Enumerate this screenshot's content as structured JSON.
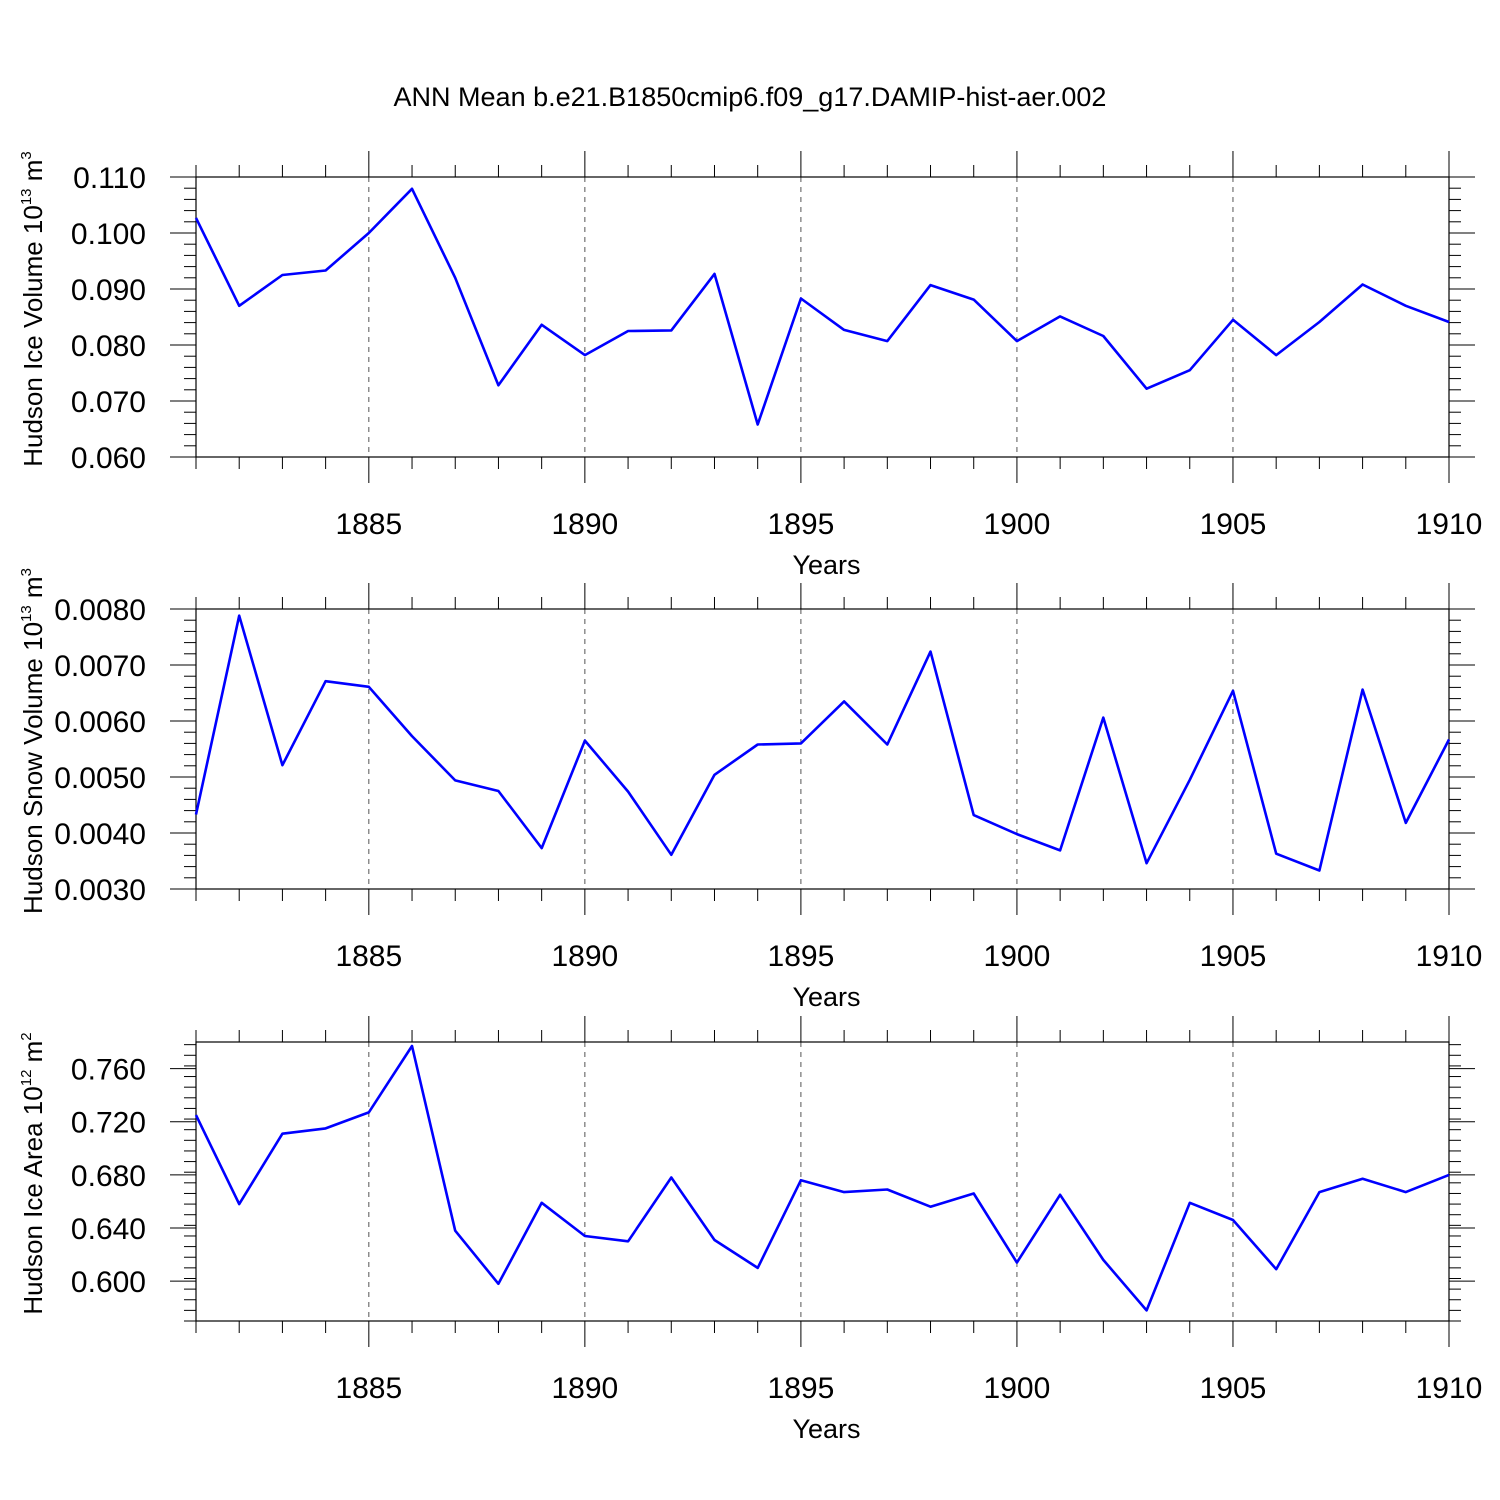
{
  "title": "ANN Mean b.e21.B1850cmip6.f09_g17.DAMIP-hist-aer.002",
  "colors": {
    "line": "#0000ff",
    "axis": "#000000",
    "grid": "#555555"
  },
  "chart_data": [
    {
      "type": "line",
      "xlabel": "Years",
      "ylabel": {
        "text": "Hudson Ice Volume 10",
        "sup1": "13",
        "mid": " m",
        "sup2": "3"
      },
      "xlim": [
        1881,
        1910
      ],
      "ylim": [
        0.06,
        0.11
      ],
      "yticks": [
        "0.060",
        "0.070",
        "0.080",
        "0.090",
        "0.100",
        "0.110"
      ],
      "xticks": [
        "1885",
        "1890",
        "1895",
        "1900",
        "1905",
        "1910"
      ],
      "grid": "dashed vertical at major x ticks",
      "x": [
        1881,
        1882,
        1883,
        1884,
        1885,
        1886,
        1887,
        1888,
        1889,
        1890,
        1891,
        1892,
        1893,
        1894,
        1895,
        1896,
        1897,
        1898,
        1899,
        1900,
        1901,
        1902,
        1903,
        1904,
        1905,
        1906,
        1907,
        1908,
        1909,
        1910
      ],
      "series": [
        {
          "values": [
            0.1027,
            0.087,
            0.0925,
            0.0933,
            0.1,
            0.1079,
            0.092,
            0.0728,
            0.0836,
            0.0782,
            0.0825,
            0.0826,
            0.0927,
            0.0658,
            0.0883,
            0.0827,
            0.0807,
            0.0907,
            0.0881,
            0.0807,
            0.0851,
            0.0816,
            0.0722,
            0.0755,
            0.0845,
            0.0782,
            0.0841,
            0.0908,
            0.087,
            0.0841
          ]
        }
      ]
    },
    {
      "type": "line",
      "xlabel": "Years",
      "ylabel": {
        "text": "Hudson Snow Volume 10",
        "sup1": "13",
        "mid": " m",
        "sup2": "3"
      },
      "xlim": [
        1881,
        1910
      ],
      "ylim": [
        0.003,
        0.008
      ],
      "yticks": [
        "0.0030",
        "0.0040",
        "0.0050",
        "0.0060",
        "0.0070",
        "0.0080"
      ],
      "xticks": [
        "1885",
        "1890",
        "1895",
        "1900",
        "1905",
        "1910"
      ],
      "grid": "dashed vertical at major x ticks",
      "x": [
        1881,
        1882,
        1883,
        1884,
        1885,
        1886,
        1887,
        1888,
        1889,
        1890,
        1891,
        1892,
        1893,
        1894,
        1895,
        1896,
        1897,
        1898,
        1899,
        1900,
        1901,
        1902,
        1903,
        1904,
        1905,
        1906,
        1907,
        1908,
        1909,
        1910
      ],
      "series": [
        {
          "values": [
            0.00433,
            0.00788,
            0.00521,
            0.00671,
            0.00661,
            0.00573,
            0.00494,
            0.00475,
            0.00373,
            0.00565,
            0.00474,
            0.00361,
            0.00504,
            0.00558,
            0.0056,
            0.00635,
            0.00558,
            0.00724,
            0.00432,
            0.00398,
            0.00369,
            0.00606,
            0.00346,
            0.00495,
            0.00654,
            0.00363,
            0.00333,
            0.00656,
            0.00418,
            0.00567
          ]
        }
      ]
    },
    {
      "type": "line",
      "xlabel": "Years",
      "ylabel": {
        "text": "Hudson Ice Area 10",
        "sup1": "12",
        "mid": " m",
        "sup2": "2"
      },
      "xlim": [
        1881,
        1910
      ],
      "ylim": [
        0.57,
        0.78
      ],
      "yticks": [
        "0.600",
        "0.640",
        "0.680",
        "0.720",
        "0.760"
      ],
      "ytick_values": [
        0.6,
        0.64,
        0.68,
        0.72,
        0.76
      ],
      "xticks": [
        "1885",
        "1890",
        "1895",
        "1900",
        "1905",
        "1910"
      ],
      "grid": "dashed vertical at major x ticks",
      "x": [
        1881,
        1882,
        1883,
        1884,
        1885,
        1886,
        1887,
        1888,
        1889,
        1890,
        1891,
        1892,
        1893,
        1894,
        1895,
        1896,
        1897,
        1898,
        1899,
        1900,
        1901,
        1902,
        1903,
        1904,
        1905,
        1906,
        1907,
        1908,
        1909,
        1910
      ],
      "series": [
        {
          "values": [
            0.725,
            0.658,
            0.711,
            0.715,
            0.727,
            0.777,
            0.638,
            0.598,
            0.659,
            0.634,
            0.63,
            0.678,
            0.631,
            0.61,
            0.676,
            0.667,
            0.669,
            0.656,
            0.666,
            0.614,
            0.665,
            0.616,
            0.578,
            0.659,
            0.646,
            0.609,
            0.667,
            0.677,
            0.667,
            0.68
          ]
        }
      ]
    }
  ]
}
